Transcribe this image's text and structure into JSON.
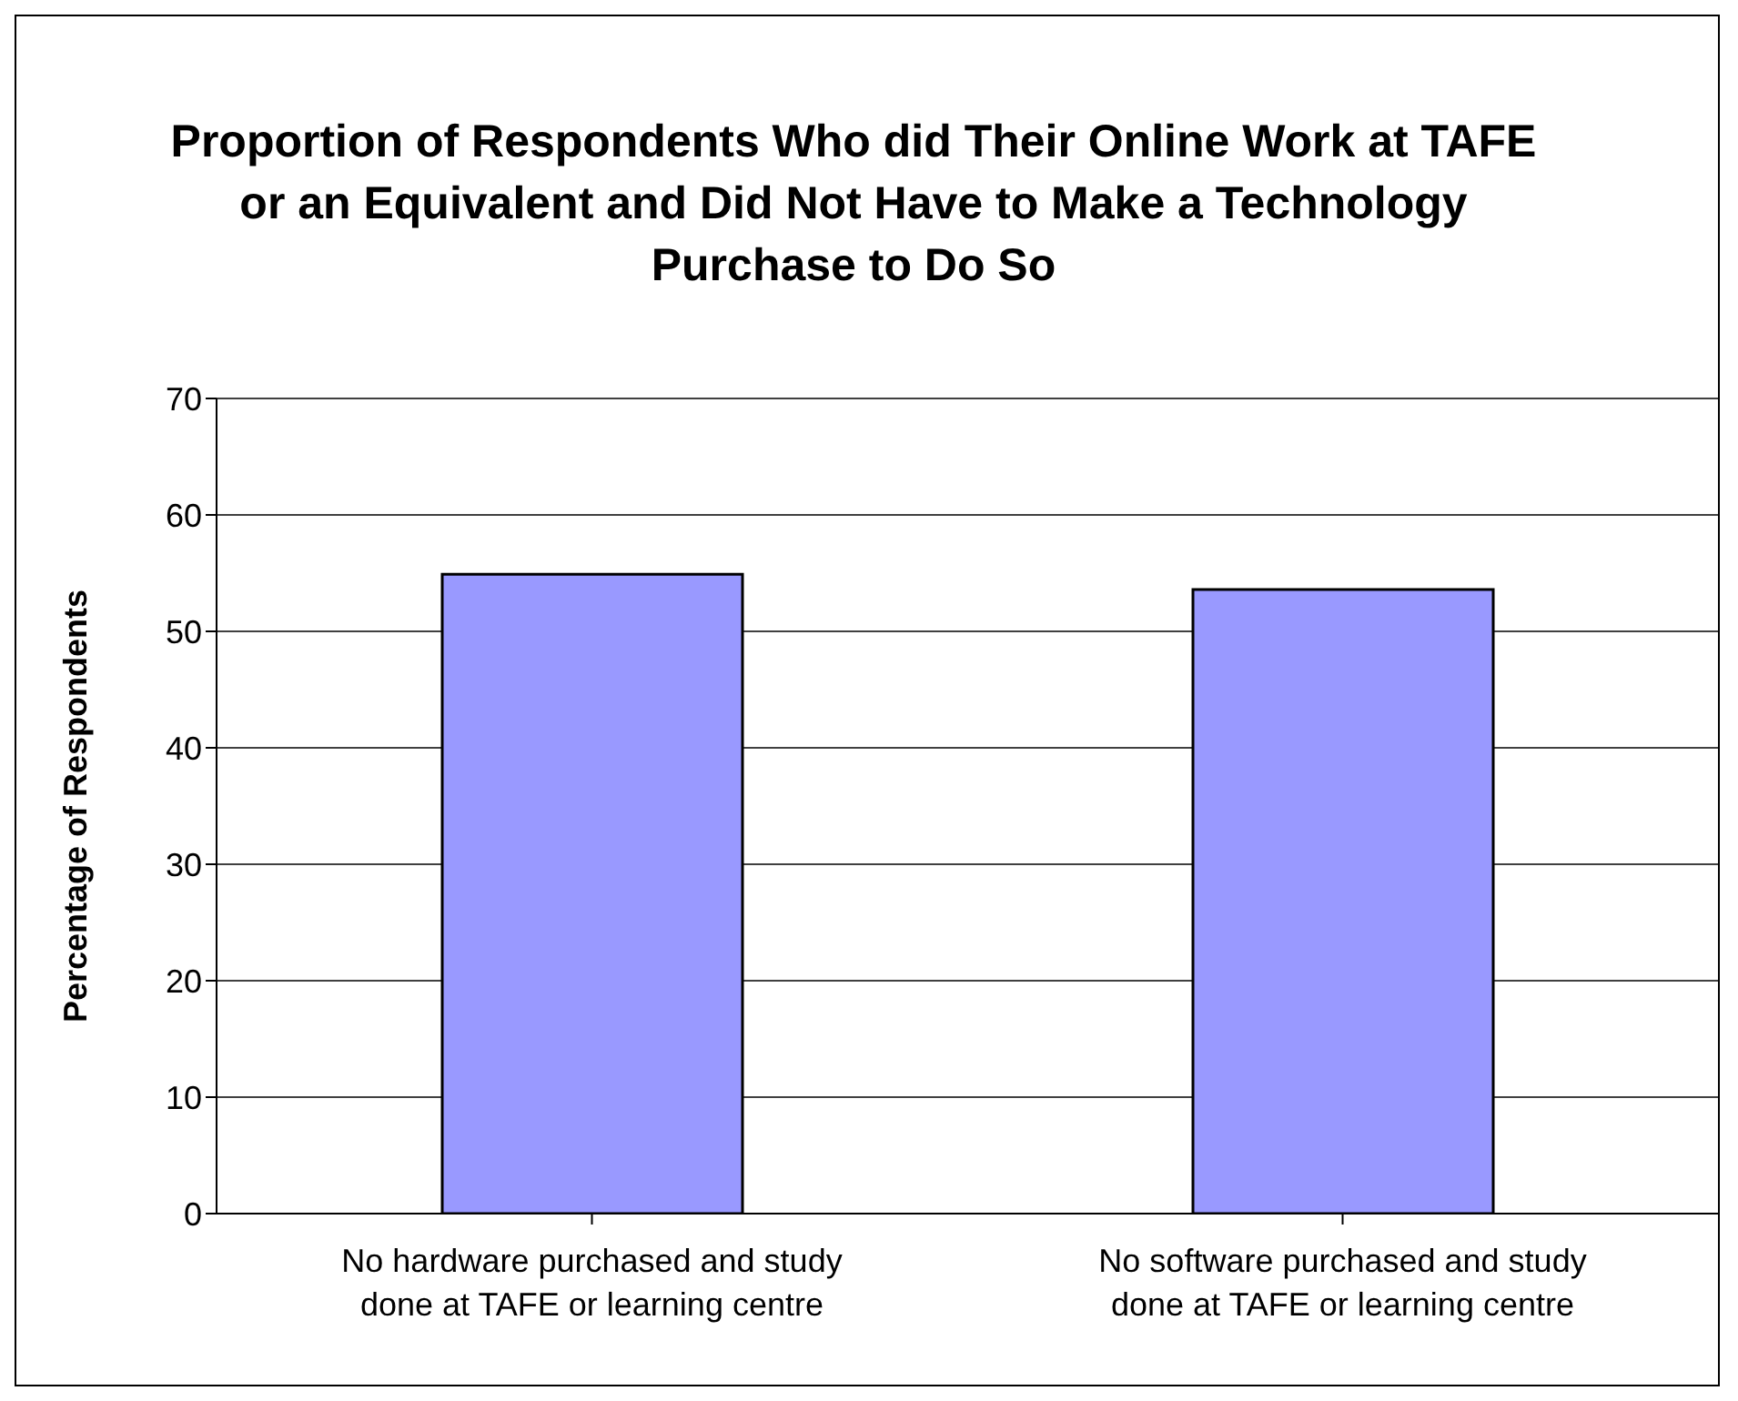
{
  "chart_data": {
    "type": "bar",
    "title": "Proportion of Respondents Who did Their Online Work at TAFE or an Equivalent and Did Not Have to Make a Technology Purchase to Do So",
    "ylabel": "Percentage of Respondents",
    "categories": [
      "No hardware purchased and study done at TAFE or learning centre",
      "No software purchased and study done at TAFE or learning centre"
    ],
    "values": [
      54.9,
      53.6
    ],
    "color": "#9999ff",
    "ylim": [
      0,
      70
    ],
    "yticks": [
      0,
      10,
      20,
      30,
      40,
      50,
      60,
      70
    ],
    "grid": "y"
  }
}
